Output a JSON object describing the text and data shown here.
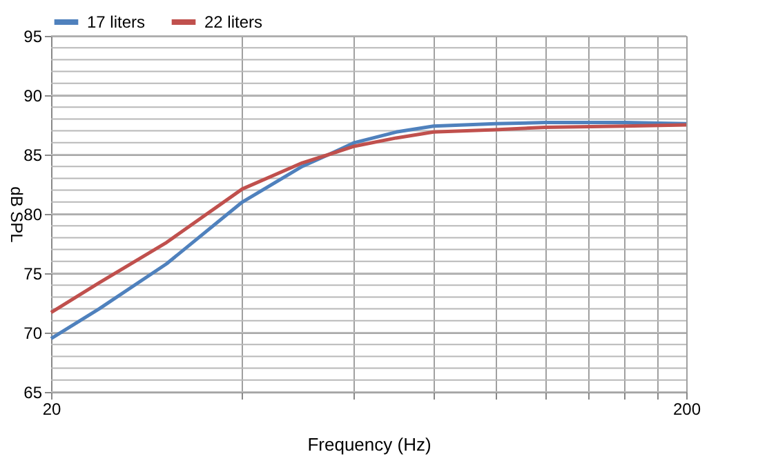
{
  "chart_data": {
    "type": "line",
    "xlabel": "Frequency (Hz)",
    "ylabel": "dB SPL",
    "log": "x",
    "x": [
      20,
      23.8,
      30.4,
      40,
      49.7,
      54.7,
      60,
      69.9,
      80,
      100,
      120,
      160,
      200
    ],
    "series": [
      {
        "name": "17 liters",
        "color": "#4f81bd",
        "values": [
          69.5,
          72,
          75.8,
          81,
          84,
          85,
          86,
          86.9,
          87.4,
          87.6,
          87.7,
          87.7,
          87.6
        ]
      },
      {
        "name": "22 liters",
        "color": "#c0504d",
        "values": [
          71.7,
          74.2,
          77.6,
          82.1,
          84.3,
          85,
          85.7,
          86.4,
          86.9,
          87.1,
          87.3,
          87.4,
          87.5
        ]
      }
    ],
    "xlim": [
      20,
      200
    ],
    "xticks": [
      20,
      {
        "value": 40,
        "label": null
      },
      {
        "value": 60,
        "label": null
      },
      {
        "value": 80,
        "label": null
      },
      {
        "value": 100,
        "label": null
      },
      {
        "value": 120,
        "label": null
      },
      {
        "value": 140,
        "label": null
      },
      {
        "value": 160,
        "label": null
      },
      {
        "value": 180,
        "label": null
      },
      200
    ],
    "ylim": [
      65,
      95
    ],
    "yticks": [
      65,
      70,
      75,
      80,
      85,
      90,
      95
    ],
    "grid": true,
    "legend": "top",
    "marker": "none",
    "line_style": "solid"
  }
}
